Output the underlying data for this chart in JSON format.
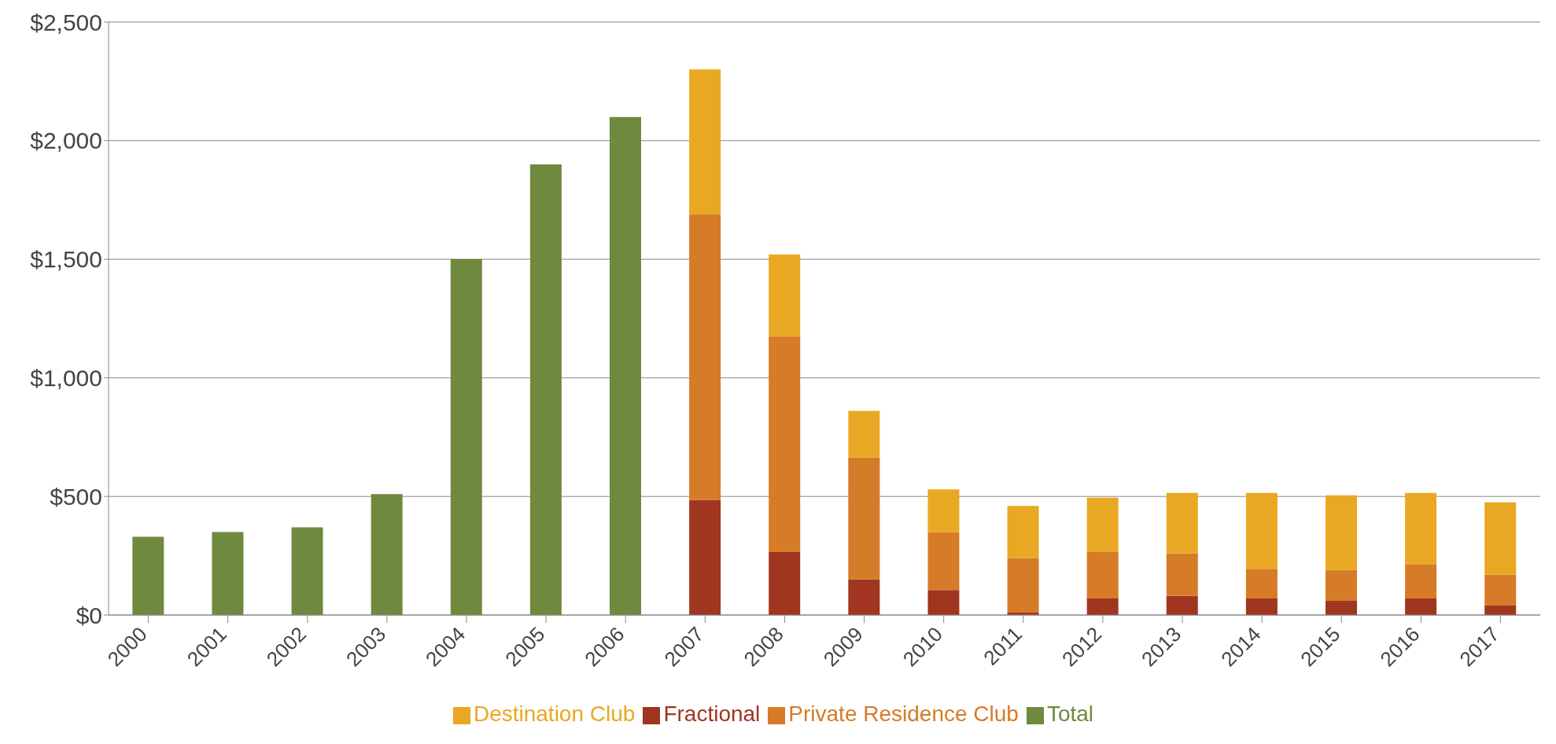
{
  "chart_data": {
    "type": "bar",
    "stacked": true,
    "categories": [
      "2000",
      "2001",
      "2002",
      "2003",
      "2004",
      "2005",
      "2006",
      "2007",
      "2008",
      "2009",
      "2010",
      "2011",
      "2012",
      "2013",
      "2014",
      "2015",
      "2016",
      "2017"
    ],
    "series": [
      {
        "name": "Fractional",
        "color": "#a03520",
        "values": [
          null,
          null,
          null,
          null,
          null,
          null,
          null,
          485,
          265,
          150,
          105,
          10,
          70,
          80,
          70,
          60,
          70,
          40
        ]
      },
      {
        "name": "Private Residence Club",
        "color": "#d67b27",
        "values": [
          null,
          null,
          null,
          null,
          null,
          null,
          null,
          1205,
          910,
          515,
          245,
          230,
          195,
          180,
          125,
          130,
          145,
          130
        ]
      },
      {
        "name": "Destination Club",
        "color": "#e9a823",
        "values": [
          null,
          null,
          null,
          null,
          null,
          null,
          null,
          610,
          345,
          195,
          180,
          220,
          230,
          255,
          320,
          315,
          300,
          305
        ]
      },
      {
        "name": "Total",
        "color": "#6f8a3e",
        "values": [
          330,
          350,
          370,
          510,
          1500,
          1900,
          2100,
          null,
          null,
          null,
          null,
          null,
          null,
          null,
          null,
          null,
          null,
          null
        ]
      }
    ],
    "ylim": [
      0,
      2500
    ],
    "yticks": [
      {
        "value": 0,
        "label": "$0"
      },
      {
        "value": 500,
        "label": "$500"
      },
      {
        "value": 1000,
        "label": "$1,000"
      },
      {
        "value": 1500,
        "label": "$1,500"
      },
      {
        "value": 2000,
        "label": "$2,000"
      },
      {
        "value": 2500,
        "label": "$2,500"
      }
    ],
    "grid": "y",
    "legend": "bottom"
  }
}
